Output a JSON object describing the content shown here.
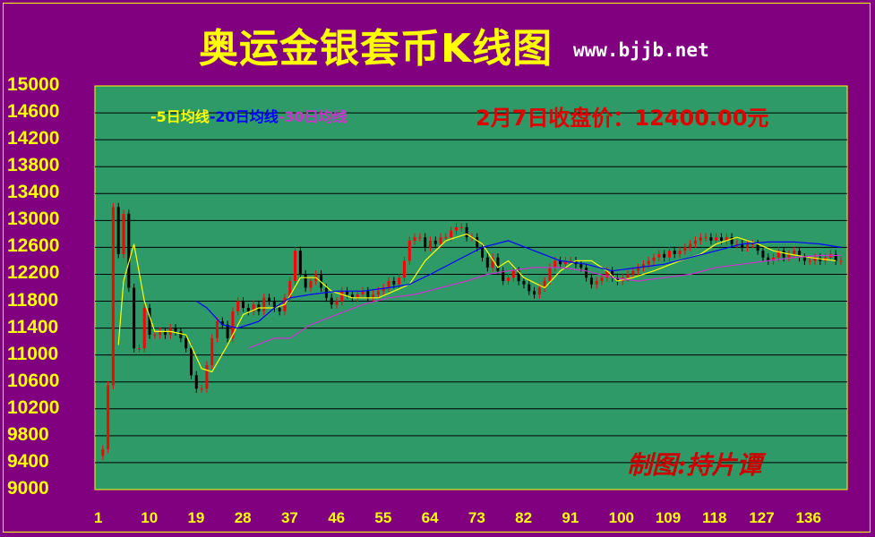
{
  "chart_data": {
    "type": "candlestick",
    "title": "奥运金银套币K线图",
    "source": "www.bjjb.net",
    "price_note": "2月7日收盘价：12400.00元",
    "author": "制图:持片谭",
    "ylim": [
      9000,
      15000
    ],
    "xlim": [
      1,
      144
    ],
    "y_ticks": [
      15000,
      14600,
      14200,
      13800,
      13400,
      13000,
      12600,
      12200,
      11800,
      11400,
      11000,
      10600,
      10200,
      9800,
      9400,
      9000
    ],
    "x_ticks": [
      1,
      10,
      19,
      28,
      37,
      46,
      55,
      64,
      73,
      82,
      91,
      100,
      109,
      118,
      127,
      136
    ],
    "legend": [
      {
        "label": "-5日均线",
        "color": "#ffff00"
      },
      {
        "label": "-20日均线",
        "color": "#0000ff"
      },
      {
        "label": "-30日均线",
        "color": "#cc33cc"
      }
    ],
    "ma_series": [
      {
        "name": "5日均线",
        "color": "#ffff00",
        "points": [
          [
            5,
            11150
          ],
          [
            6,
            12100
          ],
          [
            8,
            12650
          ],
          [
            10,
            11800
          ],
          [
            12,
            11350
          ],
          [
            15,
            11350
          ],
          [
            18,
            11300
          ],
          [
            21,
            10800
          ],
          [
            23,
            10750
          ],
          [
            26,
            11150
          ],
          [
            29,
            11600
          ],
          [
            32,
            11700
          ],
          [
            35,
            11700
          ],
          [
            37,
            11750
          ],
          [
            40,
            12150
          ],
          [
            43,
            12150
          ],
          [
            46,
            11950
          ],
          [
            50,
            11850
          ],
          [
            55,
            11850
          ],
          [
            58,
            11950
          ],
          [
            61,
            12050
          ],
          [
            64,
            12400
          ],
          [
            68,
            12700
          ],
          [
            72,
            12800
          ],
          [
            75,
            12650
          ],
          [
            78,
            12300
          ],
          [
            80,
            12400
          ],
          [
            83,
            12150
          ],
          [
            87,
            12000
          ],
          [
            90,
            12250
          ],
          [
            93,
            12400
          ],
          [
            96,
            12400
          ],
          [
            99,
            12250
          ],
          [
            101,
            12100
          ],
          [
            104,
            12150
          ],
          [
            108,
            12250
          ],
          [
            113,
            12400
          ],
          [
            117,
            12500
          ],
          [
            120,
            12650
          ],
          [
            124,
            12750
          ],
          [
            128,
            12650
          ],
          [
            131,
            12550
          ],
          [
            134,
            12500
          ],
          [
            138,
            12450
          ],
          [
            143,
            12400
          ]
        ]
      },
      {
        "name": "20日均线",
        "color": "#0000ff",
        "points": [
          [
            20,
            11800
          ],
          [
            22,
            11700
          ],
          [
            25,
            11450
          ],
          [
            28,
            11400
          ],
          [
            32,
            11500
          ],
          [
            35,
            11700
          ],
          [
            38,
            11850
          ],
          [
            42,
            11900
          ],
          [
            47,
            11950
          ],
          [
            52,
            11950
          ],
          [
            57,
            12000
          ],
          [
            61,
            12050
          ],
          [
            65,
            12200
          ],
          [
            70,
            12400
          ],
          [
            75,
            12600
          ],
          [
            80,
            12700
          ],
          [
            85,
            12550
          ],
          [
            90,
            12400
          ],
          [
            95,
            12350
          ],
          [
            100,
            12250
          ],
          [
            105,
            12300
          ],
          [
            110,
            12350
          ],
          [
            115,
            12450
          ],
          [
            120,
            12550
          ],
          [
            125,
            12650
          ],
          [
            130,
            12680
          ],
          [
            135,
            12680
          ],
          [
            140,
            12650
          ],
          [
            144,
            12600
          ]
        ]
      },
      {
        "name": "30日均线",
        "color": "#cc33cc",
        "points": [
          [
            30,
            11100
          ],
          [
            35,
            11250
          ],
          [
            38,
            11250
          ],
          [
            42,
            11450
          ],
          [
            47,
            11600
          ],
          [
            52,
            11750
          ],
          [
            57,
            11850
          ],
          [
            62,
            11900
          ],
          [
            67,
            12000
          ],
          [
            72,
            12100
          ],
          [
            76,
            12200
          ],
          [
            80,
            12250
          ],
          [
            85,
            12300
          ],
          [
            90,
            12300
          ],
          [
            95,
            12250
          ],
          [
            100,
            12150
          ],
          [
            105,
            12100
          ],
          [
            110,
            12150
          ],
          [
            115,
            12200
          ],
          [
            120,
            12300
          ],
          [
            125,
            12350
          ],
          [
            130,
            12400
          ],
          [
            135,
            12450
          ],
          [
            140,
            12480
          ],
          [
            144,
            12480
          ]
        ]
      }
    ],
    "close_series": [
      9500,
      9600,
      10550,
      13200,
      12500,
      13100,
      12000,
      11100,
      11100,
      11700,
      11300,
      11300,
      11350,
      11300,
      11400,
      11350,
      11250,
      11100,
      10700,
      10500,
      10500,
      10850,
      11250,
      11500,
      11450,
      11250,
      11650,
      11800,
      11700,
      11650,
      11750,
      11650,
      11850,
      11800,
      11700,
      11650,
      11850,
      12100,
      12550,
      12200,
      12000,
      12100,
      12200,
      12000,
      11850,
      11750,
      11800,
      11950,
      11900,
      11850,
      11900,
      11950,
      11850,
      11900,
      11950,
      12000,
      12100,
      12050,
      12150,
      12400,
      12700,
      12750,
      12750,
      12600,
      12700,
      12650,
      12750,
      12750,
      12850,
      12900,
      12900,
      12750,
      12750,
      12600,
      12450,
      12300,
      12450,
      12250,
      12100,
      12150,
      12250,
      12100,
      12050,
      11950,
      11900,
      12000,
      12100,
      12300,
      12400,
      12350,
      12400,
      12400,
      12350,
      12300,
      12150,
      12050,
      12100,
      12150,
      12250,
      12150,
      12100,
      12150,
      12200,
      12250,
      12300,
      12350,
      12400,
      12450,
      12500,
      12450,
      12550,
      12500,
      12550,
      12600,
      12650,
      12700,
      12750,
      12750,
      12700,
      12750,
      12700,
      12750,
      12650,
      12650,
      12600,
      12650,
      12650,
      12550,
      12450,
      12400,
      12450,
      12550,
      12450,
      12500,
      12550,
      12450,
      12400,
      12400,
      12450,
      12400,
      12450,
      12500,
      12400,
      12400
    ]
  }
}
